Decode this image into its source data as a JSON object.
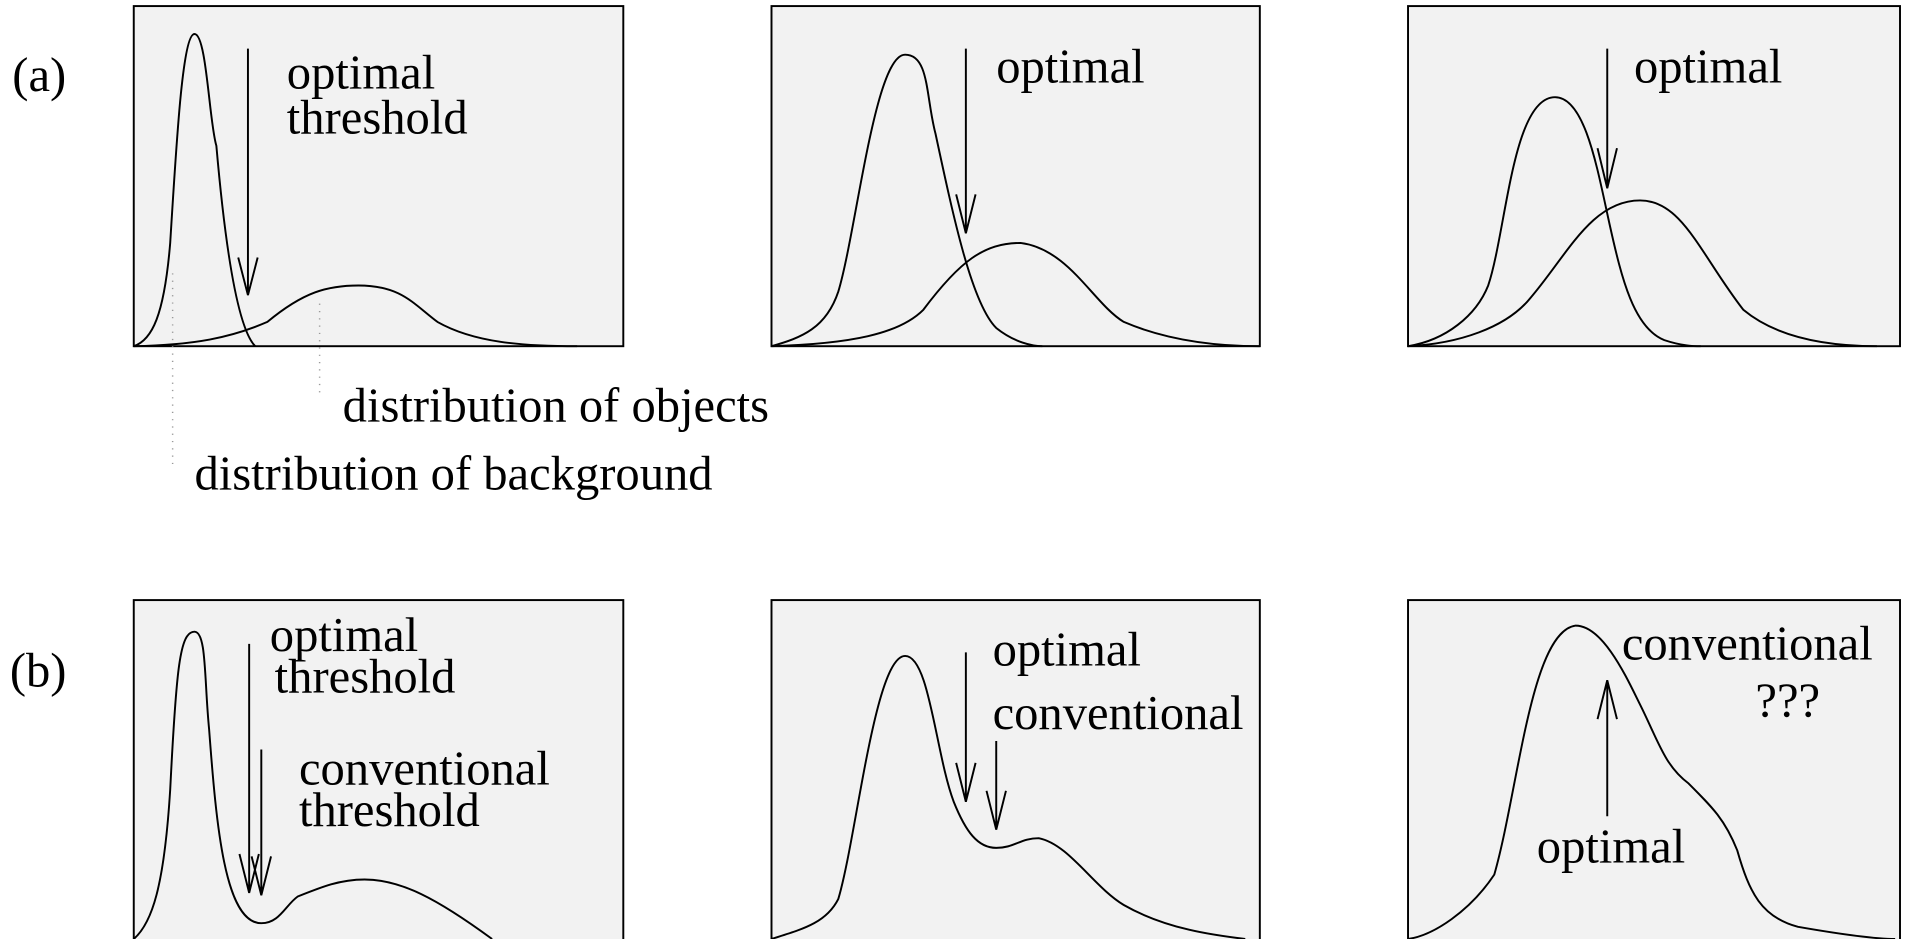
{
  "rows": [
    {
      "label": "(a)",
      "panels": [
        {
          "texts": [
            "optimal",
            "threshold"
          ]
        },
        {
          "texts": [
            "optimal"
          ]
        },
        {
          "texts": [
            "optimal"
          ]
        }
      ],
      "annotations": [
        "distribution of objects",
        "distribution of background"
      ]
    },
    {
      "label": "(b)",
      "panels": [
        {
          "texts": [
            "optimal",
            "threshold",
            "conventional",
            "threshold"
          ]
        },
        {
          "texts": [
            "optimal",
            "conventional"
          ]
        },
        {
          "texts": [
            "conventional",
            "???",
            "optimal"
          ]
        }
      ]
    }
  ]
}
